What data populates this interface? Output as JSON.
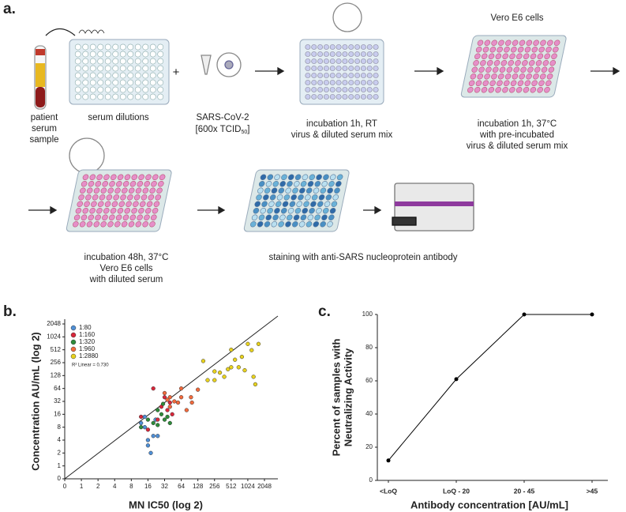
{
  "panel_a": {
    "label": "a.",
    "sample": [
      "patient",
      "serum",
      "sample"
    ],
    "dilutions": "serum dilutions",
    "plus": "+",
    "virus": {
      "name": "SARS-CoV-2",
      "dose_prefix": "[600x TCID",
      "dose_sub": "50",
      "dose_suffix": "]"
    },
    "steps": [
      {
        "lines": [
          "incubation 1h, RT",
          "virus & diluted serum mix"
        ]
      },
      {
        "lines": [
          "Vero E6 cells"
        ]
      },
      {
        "lines": [
          "incubation 1h, 37°C",
          "with pre-incubated",
          "virus & diluted serum mix"
        ]
      },
      {
        "lines": [
          "incubation 48h, 37°C",
          "Vero E6 cells",
          "with diluted serum"
        ]
      },
      {
        "lines": [
          "staining with anti-SARS nucleoprotein antibody"
        ]
      }
    ]
  },
  "chart_data": [
    {
      "type": "scatter",
      "panel": "b.",
      "scale": "log2",
      "xlabel": "MN IC50 (log 2)",
      "ylabel": "Concentration AU/mL (log 2)",
      "annotation": "R² Linear = 0.730",
      "xlim": [
        0,
        2048
      ],
      "ylim": [
        0,
        2048
      ],
      "xticks": [
        0,
        1,
        2,
        4,
        8,
        16,
        32,
        64,
        128,
        256,
        512,
        1024,
        2048
      ],
      "yticks": [
        0,
        1,
        2,
        4,
        8,
        16,
        32,
        64,
        128,
        256,
        512,
        1024,
        2048
      ],
      "series": [
        {
          "name": "1:80",
          "color": "#4f8fd6",
          "x": [
            14,
            16,
            18,
            16,
            20,
            24,
            22,
            14,
            12
          ],
          "y": [
            8,
            4,
            2,
            3,
            5,
            5,
            12,
            14,
            10
          ]
        },
        {
          "name": "1:160",
          "color": "#d9263a",
          "x": [
            12,
            16,
            24,
            28,
            32,
            36,
            40,
            20,
            44
          ],
          "y": [
            14,
            7,
            12,
            24,
            40,
            20,
            30,
            64,
            16
          ]
        },
        {
          "name": "1:320",
          "color": "#2e8b3a",
          "x": [
            12,
            16,
            20,
            24,
            28,
            32,
            36,
            40,
            24,
            30
          ],
          "y": [
            8,
            12,
            10,
            9,
            16,
            12,
            14,
            10,
            20,
            28
          ]
        },
        {
          "name": "1:960",
          "color": "#f26a3d",
          "x": [
            32,
            40,
            48,
            56,
            64,
            80,
            64,
            96,
            128,
            100,
            40,
            36
          ],
          "y": [
            50,
            40,
            32,
            30,
            40,
            20,
            64,
            40,
            60,
            30,
            24,
            35
          ]
        },
        {
          "name": "1:2880",
          "color": "#e8d21d",
          "x": [
            160,
            192,
            256,
            320,
            384,
            448,
            512,
            600,
            700,
            800,
            1024,
            1200,
            1300,
            1400,
            1600,
            512,
            900,
            256
          ],
          "y": [
            280,
            100,
            100,
            150,
            120,
            180,
            512,
            300,
            200,
            350,
            700,
            500,
            120,
            80,
            700,
            200,
            170,
            160
          ]
        }
      ]
    },
    {
      "type": "line",
      "panel": "c.",
      "color": "#000000",
      "ylabel": [
        "Percent of samples with",
        "Neutralizing Activity"
      ],
      "xlabel": "Antibody concentration [AU/mL]",
      "categories": [
        "<LoQ",
        "LoQ - 20",
        "20 - 45",
        ">45"
      ],
      "values": [
        12,
        61,
        100,
        100
      ],
      "ylim": [
        0,
        100
      ],
      "yticks": [
        0,
        20,
        40,
        60,
        80,
        100
      ]
    }
  ]
}
